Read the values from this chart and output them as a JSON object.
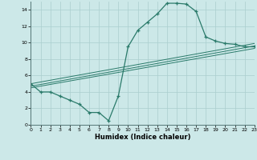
{
  "xlabel": "Humidex (Indice chaleur)",
  "bg_color": "#cce8e8",
  "grid_color": "#aacece",
  "line_color": "#2a7a6a",
  "line1_x": [
    0,
    1,
    2,
    3,
    4,
    5,
    6,
    7,
    8,
    9,
    10,
    11,
    12,
    13,
    14,
    15,
    16,
    17,
    18,
    19,
    20,
    21,
    22,
    23
  ],
  "line1_y": [
    5.0,
    4.0,
    4.0,
    3.5,
    3.0,
    2.5,
    1.5,
    1.5,
    0.5,
    3.5,
    9.5,
    11.5,
    12.5,
    13.5,
    14.8,
    14.8,
    14.7,
    13.8,
    10.7,
    10.2,
    9.9,
    9.8,
    9.5,
    9.5
  ],
  "line2_x": [
    0,
    23
  ],
  "line2_y": [
    4.5,
    9.3
  ],
  "line3_x": [
    0,
    23
  ],
  "line3_y": [
    4.7,
    9.6
  ],
  "line4_x": [
    0,
    23
  ],
  "line4_y": [
    5.0,
    9.9
  ],
  "xlim": [
    0,
    23
  ],
  "ylim": [
    0,
    15
  ],
  "xtick_vals": [
    0,
    1,
    2,
    3,
    4,
    5,
    6,
    7,
    8,
    9,
    10,
    11,
    12,
    13,
    14,
    15,
    16,
    17,
    18,
    19,
    20,
    21,
    22,
    23
  ],
  "ytick_vals": [
    0,
    2,
    4,
    6,
    8,
    10,
    12,
    14
  ],
  "xlabel_fontsize": 6,
  "tick_fontsize": 4.5
}
